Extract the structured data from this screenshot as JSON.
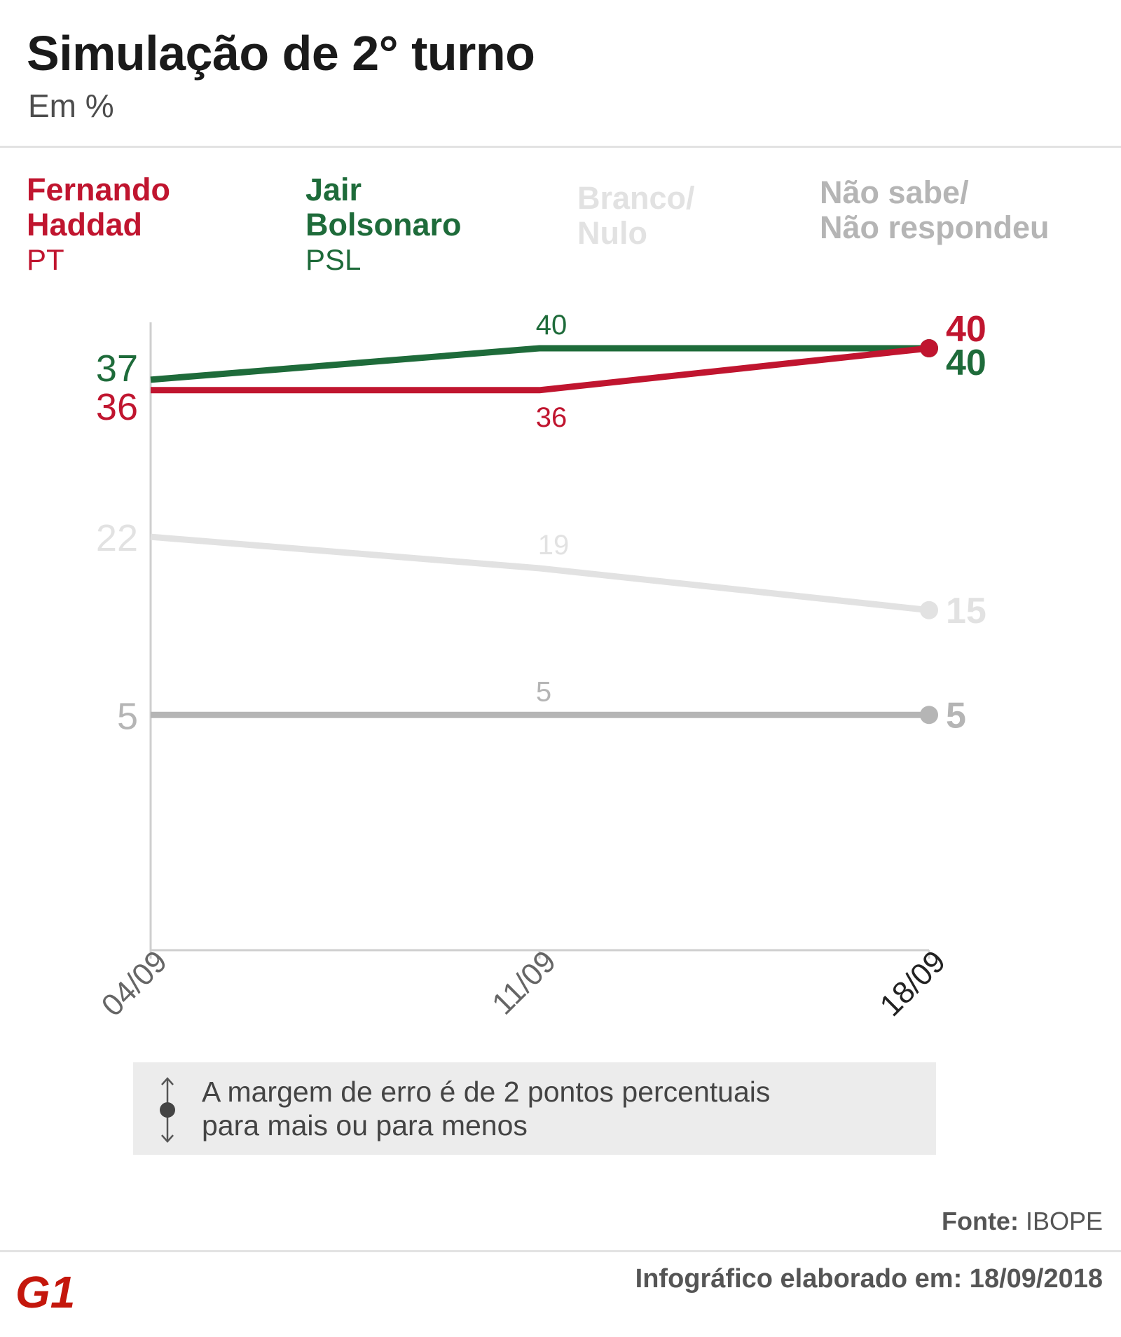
{
  "header": {
    "title": "Simulação de 2° turno",
    "subtitle": "Em %"
  },
  "legend": [
    {
      "name_line1": "Fernando",
      "name_line2": "Haddad",
      "party": "PT",
      "color": "#c0152f"
    },
    {
      "name_line1": "Jair",
      "name_line2": "Bolsonaro",
      "party": "PSL",
      "color": "#1e6b3a"
    },
    {
      "name_line1": "Branco/",
      "name_line2": "Nulo",
      "party": "",
      "color": "#e2e2e2"
    },
    {
      "name_line1": "Não sabe/",
      "name_line2": "Não respondeu",
      "party": "",
      "color": "#b5b5b5"
    }
  ],
  "chart_data": {
    "type": "line",
    "x": [
      "04/09",
      "11/09",
      "18/09"
    ],
    "ylim": [
      0,
      45
    ],
    "series": [
      {
        "name": "Fernando Haddad",
        "values": [
          36,
          36,
          40
        ],
        "labels": [
          "36",
          "36",
          "40"
        ],
        "color": "#c0152f"
      },
      {
        "name": "Jair Bolsonaro",
        "values": [
          37,
          40,
          40
        ],
        "labels": [
          "37",
          "40",
          "40"
        ],
        "color": "#1e6b3a"
      },
      {
        "name": "Branco/Nulo",
        "values": [
          22,
          19,
          15
        ],
        "labels": [
          "22",
          "19",
          "15"
        ],
        "color": "#e2e2e2"
      },
      {
        "name": "Não sabe/Não respondeu",
        "values": [
          5,
          5,
          5
        ],
        "labels": [
          "5",
          "5",
          "5"
        ],
        "color": "#b5b5b5"
      }
    ]
  },
  "note": {
    "line1": "A margem de erro é de 2 pontos percentuais",
    "line2": "para mais ou para menos"
  },
  "footer": {
    "source_label": "Fonte:",
    "source_value": "IBOPE",
    "credit": "Infográfico elaborado em: 18/09/2018",
    "logo_text": "G1",
    "logo_color": "#c4170c"
  }
}
